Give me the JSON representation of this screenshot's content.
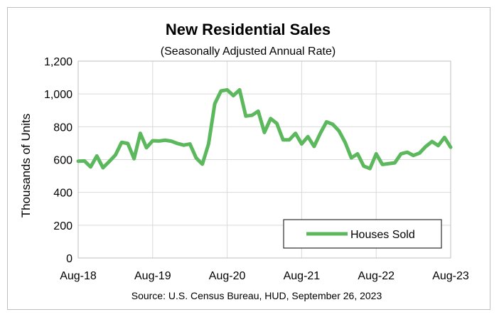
{
  "chart_data": {
    "type": "line",
    "title": "New Residential Sales",
    "subtitle": "(Seasonally Adjusted Annual Rate)",
    "ylabel": "Thousands of Units",
    "xlabel": "",
    "source": "Source:  U.S. Census Bureau, HUD, September 26, 2023",
    "ylim": [
      0,
      1200
    ],
    "yticks": [
      0,
      200,
      400,
      600,
      800,
      1000,
      1200
    ],
    "ytick_labels": [
      "0",
      "200",
      "400",
      "600",
      "800",
      "1,000",
      "1,200"
    ],
    "xtick_labels": [
      "Aug-18",
      "Aug-19",
      "Aug-20",
      "Aug-21",
      "Aug-22",
      "Aug-23"
    ],
    "x": [
      "Aug-18",
      "Sep-18",
      "Oct-18",
      "Nov-18",
      "Dec-18",
      "Jan-19",
      "Feb-19",
      "Mar-19",
      "Apr-19",
      "May-19",
      "Jun-19",
      "Jul-19",
      "Aug-19",
      "Sep-19",
      "Oct-19",
      "Nov-19",
      "Dec-19",
      "Jan-20",
      "Feb-20",
      "Mar-20",
      "Apr-20",
      "May-20",
      "Jun-20",
      "Jul-20",
      "Aug-20",
      "Sep-20",
      "Oct-20",
      "Nov-20",
      "Dec-20",
      "Jan-21",
      "Feb-21",
      "Mar-21",
      "Apr-21",
      "May-21",
      "Jun-21",
      "Jul-21",
      "Aug-21",
      "Sep-21",
      "Oct-21",
      "Nov-21",
      "Dec-21",
      "Jan-22",
      "Feb-22",
      "Mar-22",
      "Apr-22",
      "May-22",
      "Jun-22",
      "Jul-22",
      "Aug-22",
      "Sep-22",
      "Oct-22",
      "Nov-22",
      "Dec-22",
      "Jan-23",
      "Feb-23",
      "Mar-23",
      "Apr-23",
      "May-23",
      "Jun-23",
      "Jul-23",
      "Aug-23"
    ],
    "grid": true,
    "legend_position": "bottom-right",
    "series": [
      {
        "name": "Houses Sold",
        "color": "#5cb85c",
        "values": [
          590,
          592,
          555,
          622,
          550,
          588,
          628,
          705,
          698,
          605,
          760,
          672,
          715,
          713,
          718,
          712,
          698,
          688,
          695,
          610,
          572,
          695,
          940,
          1018,
          1025,
          990,
          1025,
          865,
          870,
          895,
          765,
          850,
          820,
          720,
          720,
          760,
          695,
          740,
          680,
          760,
          830,
          815,
          775,
          705,
          610,
          635,
          560,
          545,
          635,
          570,
          575,
          580,
          635,
          645,
          625,
          640,
          680,
          710,
          685,
          735,
          675
        ]
      }
    ]
  }
}
